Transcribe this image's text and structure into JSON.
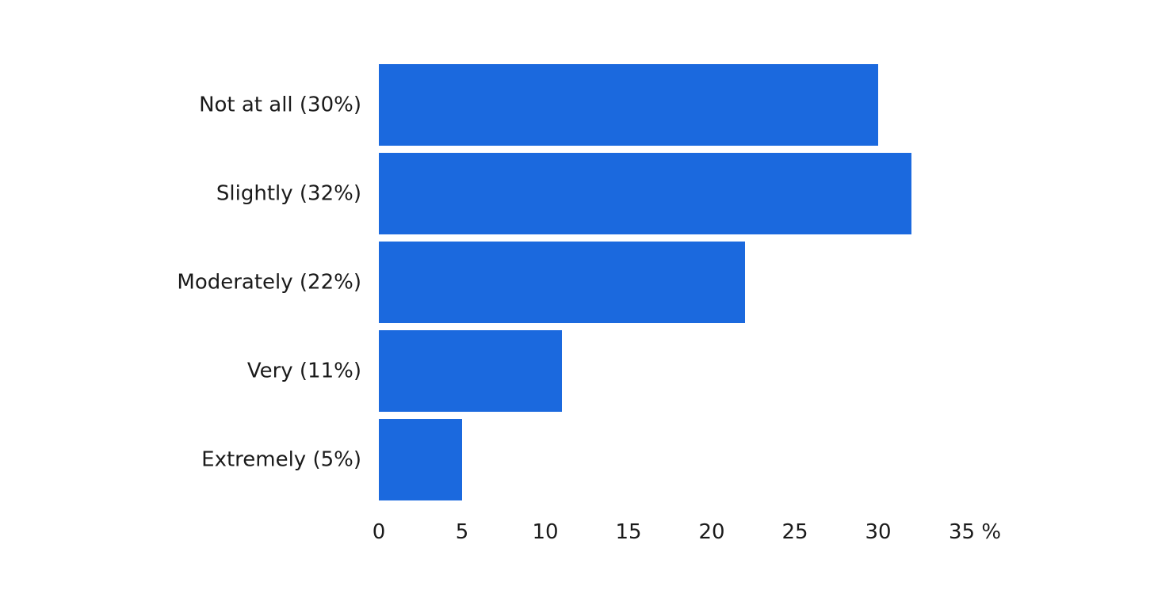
{
  "chart_data": {
    "type": "bar",
    "orientation": "horizontal",
    "categories": [
      "Not at all (30%)",
      "Slightly (32%)",
      "Moderately (22%)",
      "Very (11%)",
      "Extremely (5%)"
    ],
    "values": [
      30,
      32,
      22,
      11,
      5
    ],
    "xlim": [
      0,
      35
    ],
    "x_ticks": [
      "0",
      "5",
      "10",
      "15",
      "20",
      "25",
      "30",
      "35 %"
    ],
    "grid": false,
    "legend": "none",
    "bar_color": "#1b69de",
    "text_color": "#1a1a1a"
  }
}
